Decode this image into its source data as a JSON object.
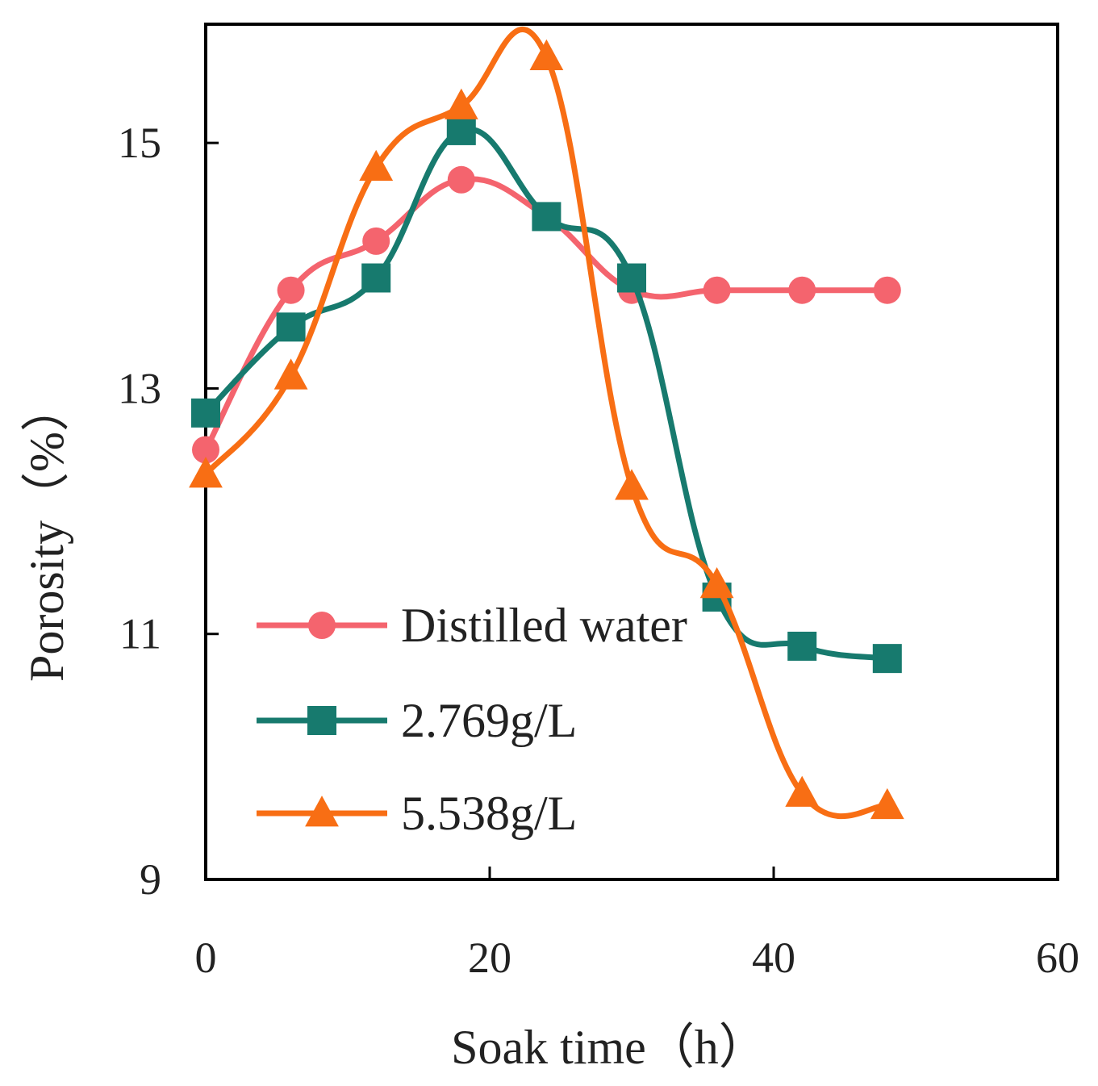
{
  "chart_data": {
    "type": "line",
    "title": "",
    "xlabel": "Soak time（h）",
    "ylabel": "Porosity（%）",
    "xlim": [
      0,
      60
    ],
    "ylim": [
      9,
      16
    ],
    "xticks": [
      0,
      20,
      40,
      60
    ],
    "yticks": [
      9,
      11,
      13,
      15
    ],
    "grid": false,
    "legend_position": "bottom-left",
    "series": [
      {
        "name": "Distilled water",
        "color": "#F4646E",
        "marker": "circle",
        "x": [
          0,
          6,
          12,
          18,
          24,
          30,
          36,
          42,
          48
        ],
        "y": [
          12.5,
          13.8,
          14.2,
          14.7,
          14.4,
          13.8,
          13.8,
          13.8,
          13.8
        ]
      },
      {
        "name": "2.769g/L",
        "color": "#177A6E",
        "marker": "square",
        "x": [
          0,
          6,
          12,
          18,
          24,
          30,
          36,
          42,
          48
        ],
        "y": [
          12.8,
          13.5,
          13.9,
          15.1,
          14.4,
          13.9,
          11.3,
          10.9,
          10.8
        ]
      },
      {
        "name": "5.538g/L",
        "color": "#F86E14",
        "marker": "triangle",
        "x": [
          0,
          6,
          12,
          18,
          24,
          30,
          36,
          42,
          48
        ],
        "y": [
          12.3,
          13.1,
          14.8,
          15.3,
          15.7,
          12.2,
          11.4,
          9.7,
          9.6
        ]
      }
    ]
  }
}
